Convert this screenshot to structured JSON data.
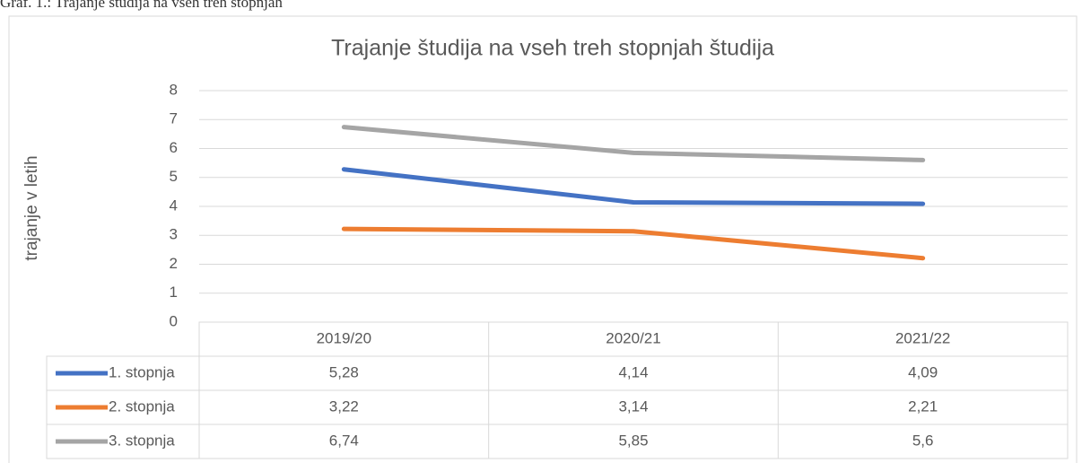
{
  "caption": "Graf. 1.: Trajanje študija na vseh treh stopnjah",
  "chart_data": {
    "type": "line",
    "title": "Trajanje študija na vseh treh stopnjah študija",
    "y_label": "trajanje v letih",
    "categories": [
      "2019/20",
      "2020/21",
      "2021/22"
    ],
    "series": [
      {
        "name": "1. stopnja",
        "color": "#4472c4",
        "values": [
          5.28,
          4.14,
          4.09
        ],
        "value_labels": [
          "5,28",
          "4,14",
          "4,09"
        ]
      },
      {
        "name": "2. stopnja",
        "color": "#ed7d31",
        "values": [
          3.22,
          3.14,
          2.21
        ],
        "value_labels": [
          "3,22",
          "3,14",
          "2,21"
        ]
      },
      {
        "name": "3. stopnja",
        "color": "#a5a5a5",
        "values": [
          6.74,
          5.85,
          5.6
        ],
        "value_labels": [
          "6,74",
          "5,85",
          "5,6"
        ]
      }
    ],
    "ylim": [
      0,
      8
    ],
    "yticks": [
      0,
      1,
      2,
      3,
      4,
      5,
      6,
      7,
      8
    ],
    "grid": true
  }
}
